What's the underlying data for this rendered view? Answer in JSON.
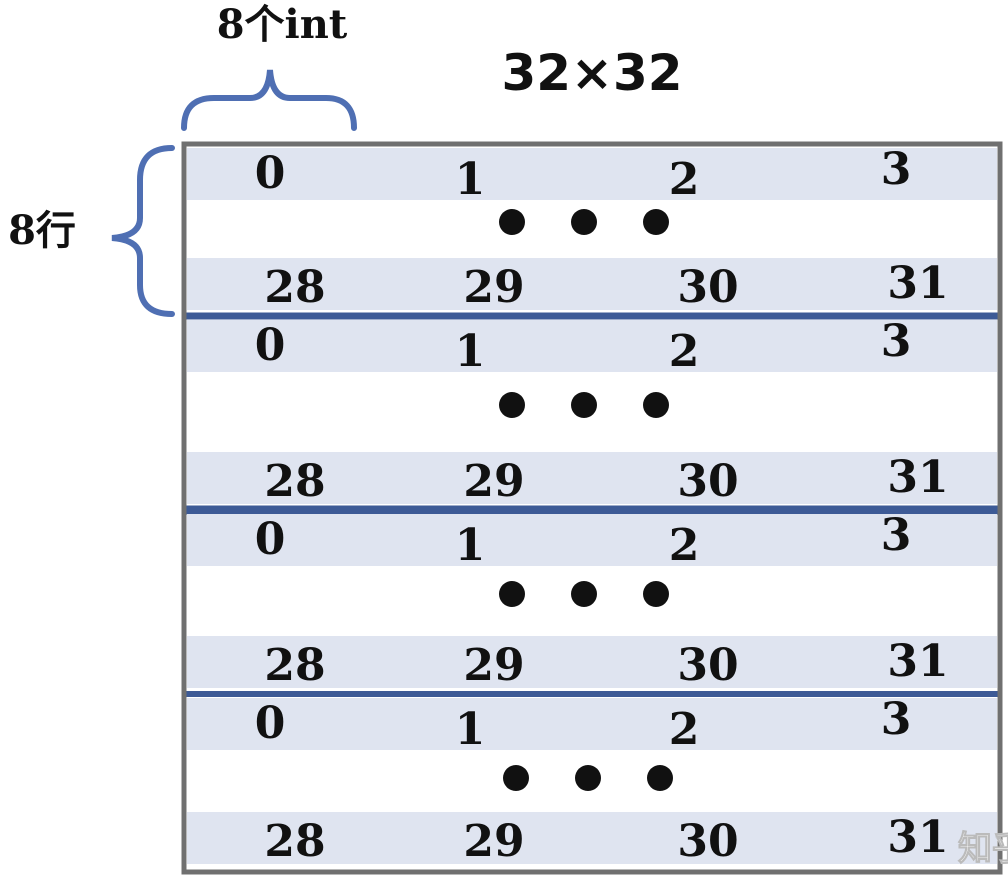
{
  "title": "32×32",
  "column_brace_label": "8个int",
  "row_brace_label": "8行",
  "watermark": "知乎",
  "colors": {
    "stripe": "#dfe4f0",
    "divider": "#3d5a96",
    "brace": "#4f6fb3",
    "border": "#707070",
    "text": "#111111"
  },
  "blocks": [
    {
      "top_row": [
        "0",
        "1",
        "2",
        "3"
      ],
      "bottom_row": [
        "28",
        "29",
        "30",
        "31"
      ]
    },
    {
      "top_row": [
        "0",
        "1",
        "2",
        "3"
      ],
      "bottom_row": [
        "28",
        "29",
        "30",
        "31"
      ]
    },
    {
      "top_row": [
        "0",
        "1",
        "2",
        "3"
      ],
      "bottom_row": [
        "28",
        "29",
        "30",
        "31"
      ]
    },
    {
      "top_row": [
        "0",
        "1",
        "2",
        "3"
      ],
      "bottom_row": [
        "28",
        "29",
        "30",
        "31"
      ]
    }
  ]
}
